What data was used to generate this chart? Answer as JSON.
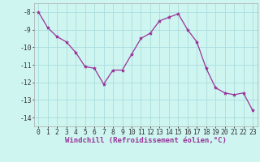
{
  "x": [
    0,
    1,
    2,
    3,
    4,
    5,
    6,
    7,
    8,
    9,
    10,
    11,
    12,
    13,
    14,
    15,
    16,
    17,
    18,
    19,
    20,
    21,
    22,
    23
  ],
  "y": [
    -8.0,
    -8.9,
    -9.4,
    -9.7,
    -10.3,
    -11.1,
    -11.2,
    -12.1,
    -11.3,
    -11.3,
    -10.4,
    -9.5,
    -9.2,
    -8.5,
    -8.3,
    -8.1,
    -9.0,
    -9.7,
    -11.2,
    -12.3,
    -12.6,
    -12.7,
    -12.6,
    -13.6
  ],
  "line_color": "#993399",
  "marker": "*",
  "marker_size": 3,
  "bg_color": "#cef5f0",
  "grid_color": "#aadddd",
  "xlabel": "Windchill (Refroidissement éolien,°C)",
  "xlabel_fontsize": 6.5,
  "tick_fontsize": 5.8,
  "ylim": [
    -14.5,
    -7.5
  ],
  "xlim": [
    -0.5,
    23.5
  ],
  "yticks": [
    -14,
    -13,
    -12,
    -11,
    -10,
    -9,
    -8
  ],
  "xticks": [
    0,
    1,
    2,
    3,
    4,
    5,
    6,
    7,
    8,
    9,
    10,
    11,
    12,
    13,
    14,
    15,
    16,
    17,
    18,
    19,
    20,
    21,
    22,
    23
  ]
}
